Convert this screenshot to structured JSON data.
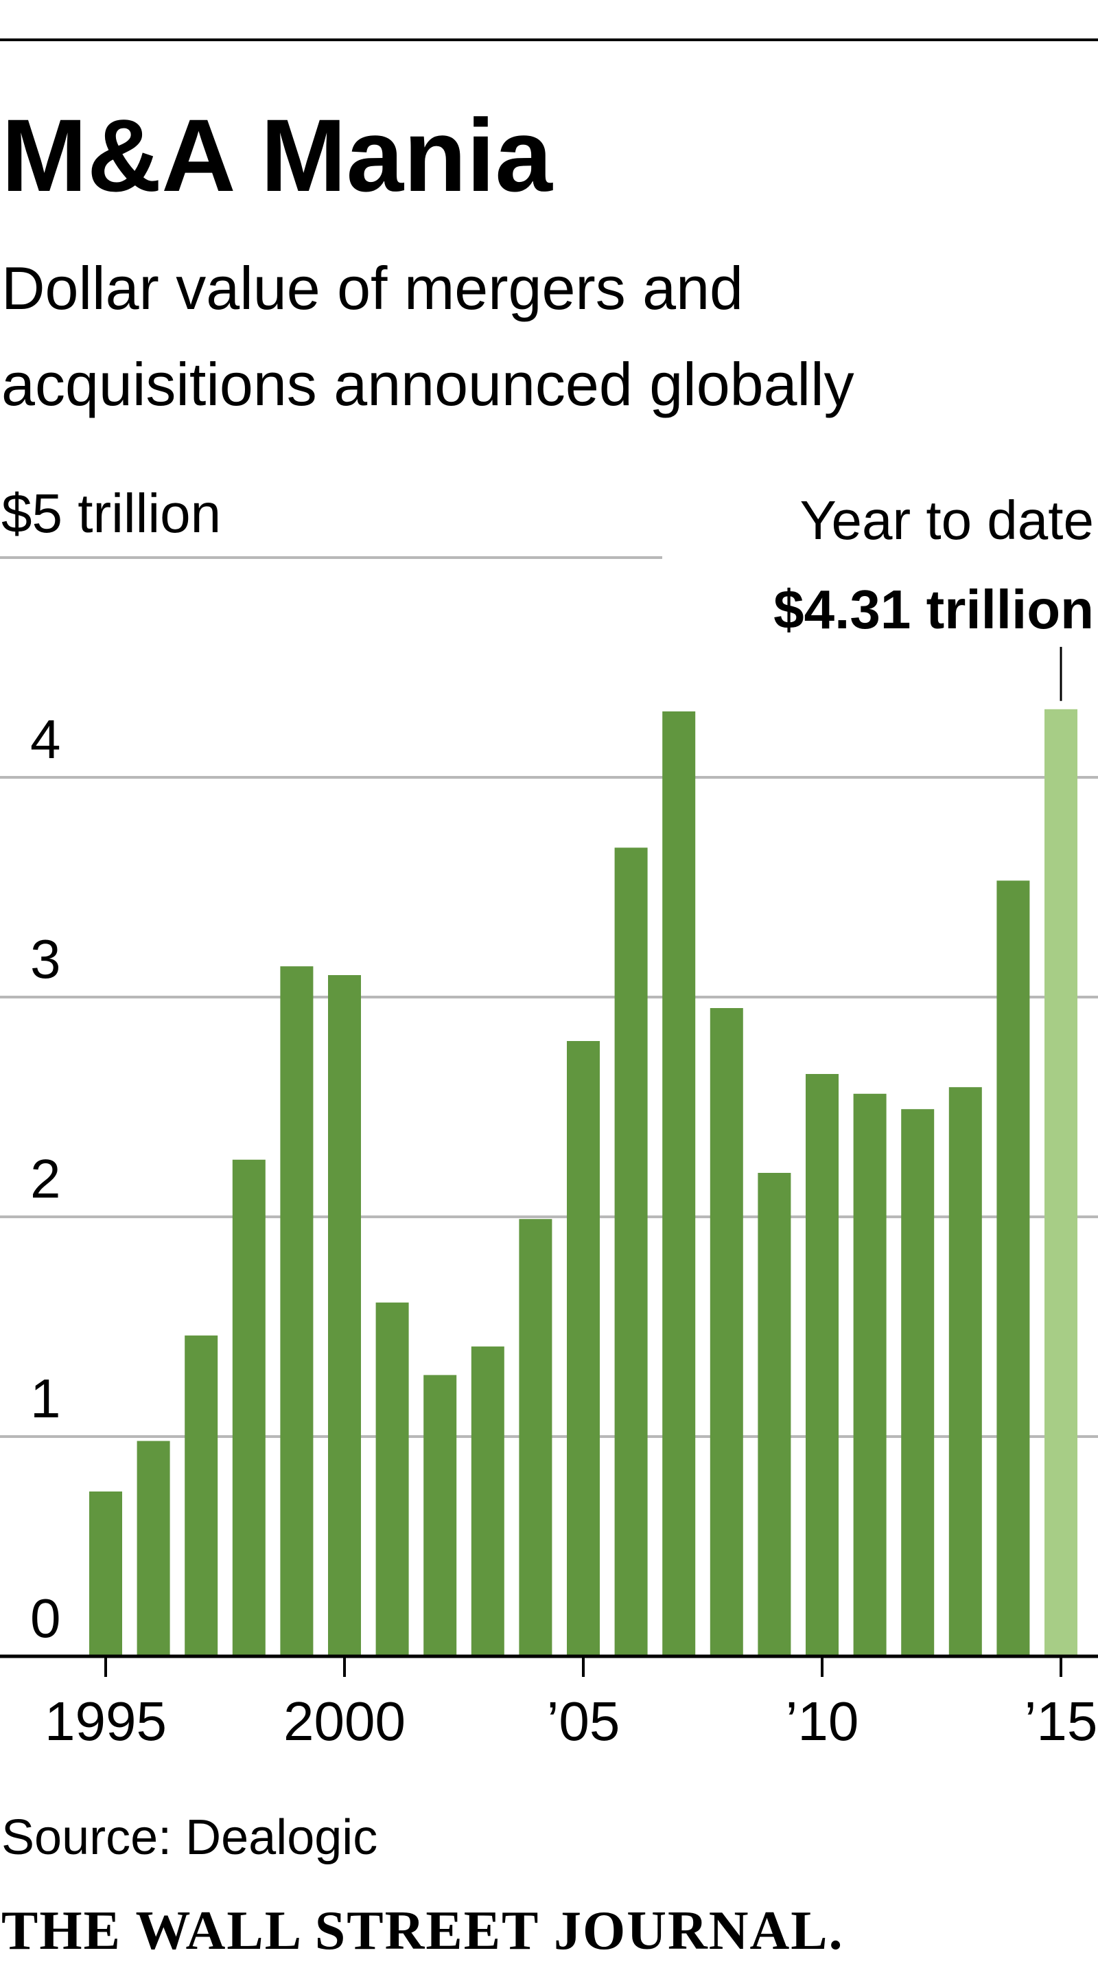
{
  "chart_data": {
    "type": "bar",
    "title": "M&A Mania",
    "subtitle_lines": [
      "Dollar value of mergers and",
      "acquisitions announced globally"
    ],
    "unit_label": "$5 trillion",
    "ylim": [
      0,
      5
    ],
    "y_ticks": [
      {
        "value": 0,
        "label": "0"
      },
      {
        "value": 1,
        "label": "1"
      },
      {
        "value": 2,
        "label": "2"
      },
      {
        "value": 3,
        "label": "3"
      },
      {
        "value": 4,
        "label": "4"
      }
    ],
    "x_ticks": [
      {
        "year": 1995,
        "label": "1995"
      },
      {
        "year": 2000,
        "label": "2000"
      },
      {
        "year": 2005,
        "label": "’05"
      },
      {
        "year": 2010,
        "label": "’10"
      },
      {
        "year": 2015,
        "label": "’15"
      }
    ],
    "categories": [
      1995,
      1996,
      1997,
      1998,
      1999,
      2000,
      2001,
      2002,
      2003,
      2004,
      2005,
      2006,
      2007,
      2008,
      2009,
      2010,
      2011,
      2012,
      2013,
      2014,
      2015
    ],
    "values": [
      0.75,
      0.98,
      1.46,
      2.26,
      3.14,
      3.1,
      1.61,
      1.28,
      1.41,
      1.99,
      2.8,
      3.68,
      4.3,
      2.95,
      2.2,
      2.65,
      2.56,
      2.49,
      2.59,
      3.53,
      4.31
    ],
    "highlight_index": 20,
    "annotation": {
      "label": "Year to date",
      "value": "$4.31 trillion"
    },
    "source": "Source: Dealogic",
    "publisher": "THE WALL STREET JOURNAL.",
    "colors": {
      "bar": "#61963f",
      "bar_highlight": "#a7cd86",
      "grid": "#b8b8b8",
      "axis": "#000000",
      "rule": "#000000"
    }
  }
}
